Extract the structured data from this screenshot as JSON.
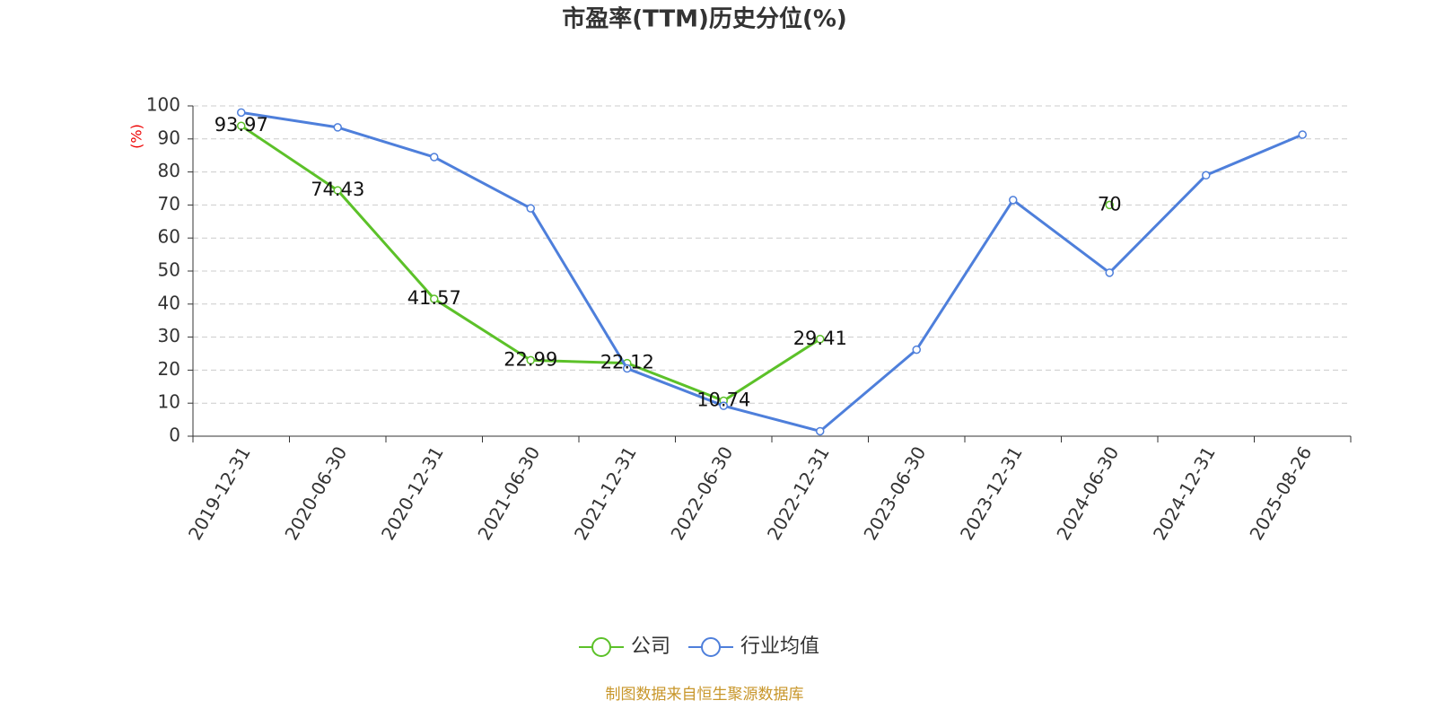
{
  "chart_data": {
    "type": "line",
    "title": "市盈率(TTM)历史分位(%)",
    "y_label": "(%)",
    "categories": [
      "2019-12-31",
      "2020-06-30",
      "2020-12-31",
      "2021-06-30",
      "2021-12-31",
      "2022-06-30",
      "2022-12-31",
      "2023-06-30",
      "2023-12-31",
      "2024-06-30",
      "2024-12-31",
      "2025-08-26"
    ],
    "series": [
      {
        "name": "公司",
        "color": "#5cc129",
        "values": [
          93.97,
          74.43,
          41.57,
          22.99,
          22.12,
          10.74,
          29.41,
          null,
          null,
          70,
          null,
          null
        ],
        "show_labels": true
      },
      {
        "name": "行业均值",
        "color": "#4e7fdb",
        "values": [
          98,
          93.5,
          84.5,
          69,
          20.5,
          9.2,
          1.5,
          26.2,
          71.5,
          49.5,
          79,
          91.3
        ],
        "show_labels": false
      }
    ],
    "ylim": [
      0,
      100
    ],
    "yticks": [
      0,
      10,
      20,
      30,
      40,
      50,
      60,
      70,
      80,
      90,
      100
    ],
    "grid": true,
    "legend": "bottom",
    "source": "制图数据来自恒生聚源数据库"
  }
}
